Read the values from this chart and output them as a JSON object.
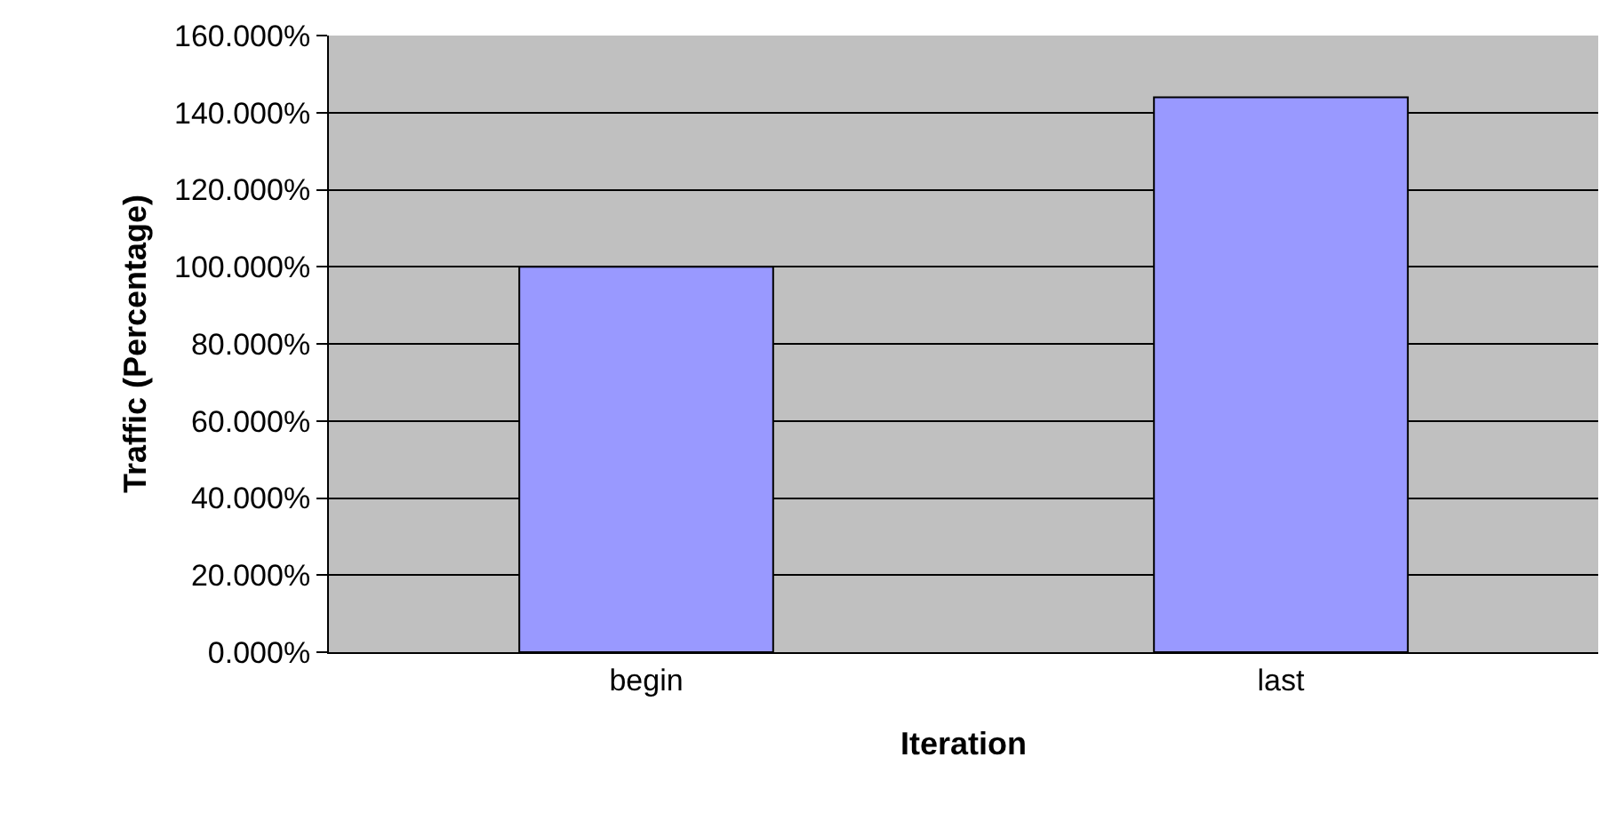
{
  "chart_data": {
    "type": "bar",
    "xlabel": "Iteration",
    "ylabel": "Traffic (Percentage)",
    "categories": [
      "begin",
      "last"
    ],
    "values": [
      100,
      144
    ],
    "color": "#9999ff",
    "ylim": [
      0,
      160
    ],
    "yticks": [
      {
        "value": 0,
        "label": "0.000%"
      },
      {
        "value": 20,
        "label": "20.000%"
      },
      {
        "value": 40,
        "label": "40.000%"
      },
      {
        "value": 60,
        "label": "60.000%"
      },
      {
        "value": 80,
        "label": "80.000%"
      },
      {
        "value": 100,
        "label": "100.000%"
      },
      {
        "value": 120,
        "label": "120.000%"
      },
      {
        "value": 140,
        "label": "140.000%"
      },
      {
        "value": 160,
        "label": "160.000%"
      }
    ],
    "grid": "y"
  }
}
